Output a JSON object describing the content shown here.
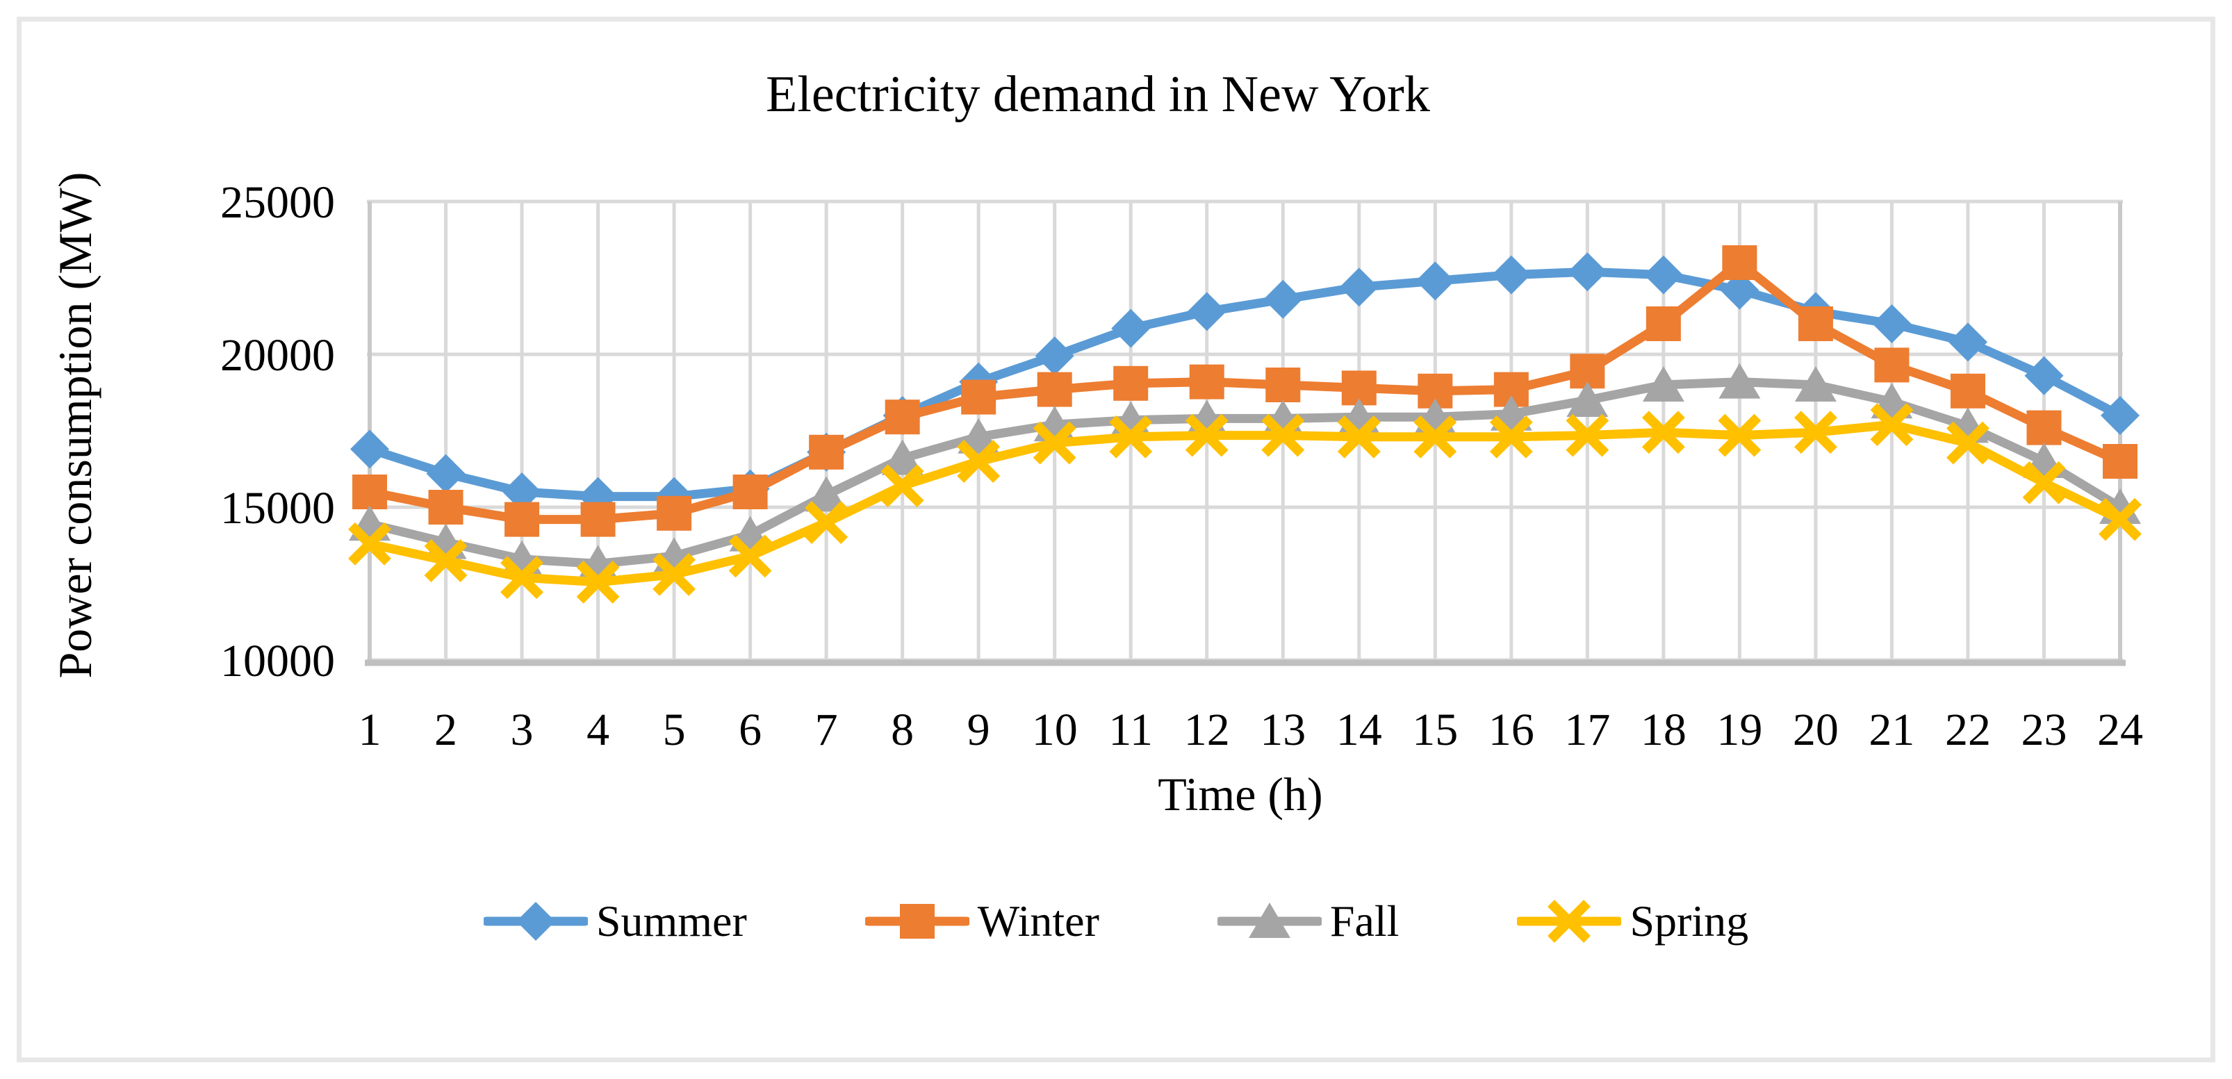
{
  "chart_data": {
    "type": "line",
    "title": "Electricity demand in New York",
    "xlabel": "Time (h)",
    "ylabel": "Power consumption (MW)",
    "x": [
      1,
      2,
      3,
      4,
      5,
      6,
      7,
      8,
      9,
      10,
      11,
      12,
      13,
      14,
      15,
      16,
      17,
      18,
      19,
      20,
      21,
      22,
      23,
      24
    ],
    "y_ticks": [
      10000,
      15000,
      20000,
      25000
    ],
    "ylim": [
      10000,
      25000
    ],
    "grid": true,
    "legend_position": "bottom",
    "background_color": "#FFFFFF",
    "frame_color": "#E7E7E7",
    "gridline_color": "#D9D9D9",
    "axis_line_color": "#BFBFBF",
    "series": [
      {
        "name": "Summer",
        "color": "#5B9BD5",
        "marker": "diamond",
        "values": [
          16900,
          16100,
          15500,
          15350,
          15350,
          15600,
          16800,
          18000,
          19100,
          19950,
          20850,
          21400,
          21800,
          22200,
          22400,
          22600,
          22700,
          22600,
          22100,
          21400,
          21000,
          20400,
          19300,
          18000
        ]
      },
      {
        "name": "Winter",
        "color": "#ED7D31",
        "marker": "square",
        "values": [
          15500,
          15000,
          14600,
          14600,
          14800,
          15500,
          16800,
          17950,
          18600,
          18850,
          19050,
          19100,
          19000,
          18900,
          18800,
          18850,
          19450,
          21000,
          23000,
          21000,
          19650,
          18800,
          17600,
          16500
        ]
      },
      {
        "name": "Fall",
        "color": "#A5A5A5",
        "marker": "triangle",
        "values": [
          14450,
          13850,
          13300,
          13150,
          13400,
          14100,
          15400,
          16600,
          17300,
          17700,
          17850,
          17900,
          17900,
          17950,
          17950,
          18050,
          18500,
          19000,
          19100,
          19000,
          18450,
          17650,
          16500,
          15000
        ]
      },
      {
        "name": "Spring",
        "color": "#FFC000",
        "marker": "x",
        "values": [
          13800,
          13250,
          12700,
          12550,
          12800,
          13400,
          14500,
          15700,
          16500,
          17100,
          17300,
          17350,
          17350,
          17300,
          17300,
          17300,
          17350,
          17450,
          17350,
          17450,
          17700,
          17100,
          15800,
          14600
        ]
      }
    ]
  }
}
